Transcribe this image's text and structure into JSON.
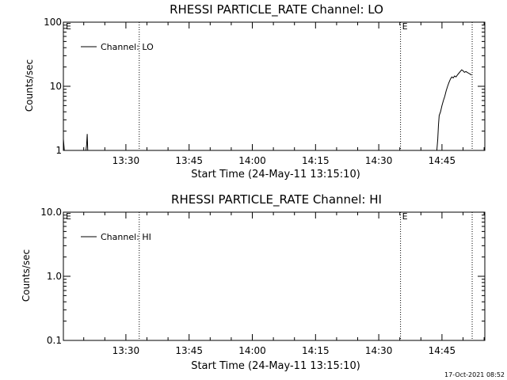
{
  "chart_data": [
    {
      "type": "line",
      "title": "RHESSI PARTICLE_RATE Channel: LO",
      "xlabel": "Start Time (24-May-11 13:15:10)",
      "ylabel": "Counts/sec",
      "xlim": [
        "13:15:10",
        "14:55:10"
      ],
      "ylim": [
        1,
        100
      ],
      "yscale": "log",
      "x_tick_labels": [
        "13:30",
        "13:45",
        "14:00",
        "14:15",
        "14:30",
        "14:45"
      ],
      "y_tick_labels": [
        "1",
        "10",
        "100"
      ],
      "legend": {
        "entries": [
          "Channel: LO"
        ],
        "position": "top-left"
      },
      "grid": false,
      "vertical_markers": [
        {
          "time": "13:33:10",
          "label": ""
        },
        {
          "time": "14:35:10",
          "label": "E"
        },
        {
          "time": "14:52:10",
          "label": ""
        }
      ],
      "corner_label": "E",
      "series": [
        {
          "name": "Channel: LO",
          "segments": [
            {
              "x": [
                "13:15:10",
                "13:15:20",
                "13:15:30"
              ],
              "y": [
                1.5,
                1.1,
                0.8
              ]
            },
            {
              "x": [
                "13:20:20",
                "13:20:40",
                "13:20:50",
                "13:21:00"
              ],
              "y": [
                0.8,
                1.2,
                1.8,
                0.8
              ]
            },
            {
              "x": [
                "14:43:40",
                "14:44:00",
                "14:44:10",
                "14:44:20",
                "14:44:40",
                "14:45:00",
                "14:45:20",
                "14:45:40",
                "14:46:00",
                "14:46:20",
                "14:46:40",
                "14:47:00",
                "14:47:20",
                "14:47:40",
                "14:48:00",
                "14:48:20",
                "14:48:40",
                "14:49:00",
                "14:49:20",
                "14:49:40",
                "14:50:00",
                "14:50:20",
                "14:50:40",
                "14:51:00",
                "14:51:20",
                "14:51:40",
                "14:52:00"
              ],
              "y": [
                0.8,
                1.5,
                2.5,
                3.5,
                4,
                5,
                6,
                7,
                8.5,
                10,
                11.5,
                13,
                14,
                13.5,
                14.5,
                14,
                15,
                16,
                17,
                18,
                17.5,
                16.5,
                17,
                16.5,
                16,
                15.5,
                15
              ]
            }
          ]
        }
      ]
    },
    {
      "type": "line",
      "title": "RHESSI PARTICLE_RATE Channel: HI",
      "xlabel": "Start Time (24-May-11 13:15:10)",
      "ylabel": "Counts/sec",
      "xlim": [
        "13:15:10",
        "14:55:10"
      ],
      "ylim": [
        0.1,
        10
      ],
      "yscale": "log",
      "x_tick_labels": [
        "13:30",
        "13:45",
        "14:00",
        "14:15",
        "14:30",
        "14:45"
      ],
      "y_tick_labels": [
        "0.1",
        "1.0",
        "10.0"
      ],
      "legend": {
        "entries": [
          "Channel: HI"
        ],
        "position": "top-left"
      },
      "grid": false,
      "vertical_markers": [
        {
          "time": "13:33:10",
          "label": ""
        },
        {
          "time": "14:35:10",
          "label": "E"
        },
        {
          "time": "14:52:10",
          "label": ""
        }
      ],
      "corner_label": "E",
      "series": [
        {
          "name": "Channel: HI",
          "segments": []
        }
      ]
    }
  ],
  "timestamp": "17-Oct-2021 08:52"
}
